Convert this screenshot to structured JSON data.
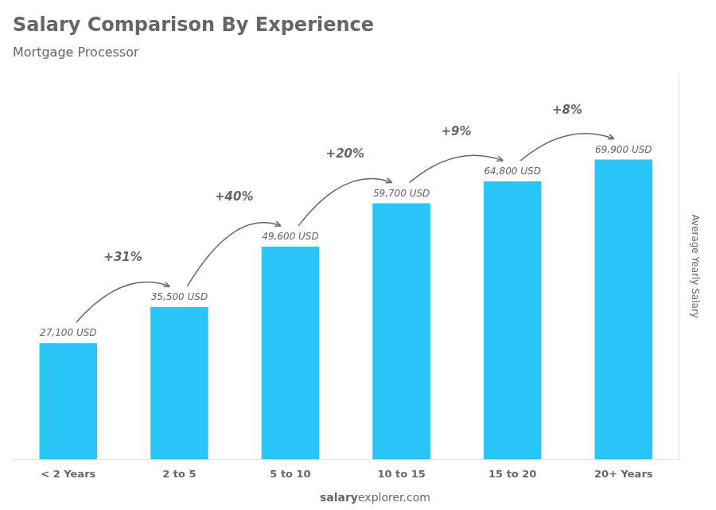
{
  "chart_data": {
    "type": "bar",
    "title": "Salary Comparison By Experience",
    "subtitle": "Mortgage Processor",
    "categories": [
      "< 2 Years",
      "2 to 5",
      "5 to 10",
      "10 to 15",
      "15 to 20",
      "20+ Years"
    ],
    "values": [
      27100,
      35500,
      49600,
      59700,
      64800,
      69900
    ],
    "value_labels": [
      "27,100 USD",
      "35,500 USD",
      "49,600 USD",
      "59,700 USD",
      "64,800 USD",
      "69,900 USD"
    ],
    "data_labels": true,
    "annotations": [
      "+31%",
      "+40%",
      "+20%",
      "+9%",
      "+8%"
    ],
    "ylabel": "Average Yearly Salary",
    "footer": [
      "salary",
      "explorer.com"
    ],
    "color": "#29c5f6",
    "ylim": [
      0,
      90000
    ],
    "tick_labels": "x",
    "grid": false,
    "legend": false
  }
}
